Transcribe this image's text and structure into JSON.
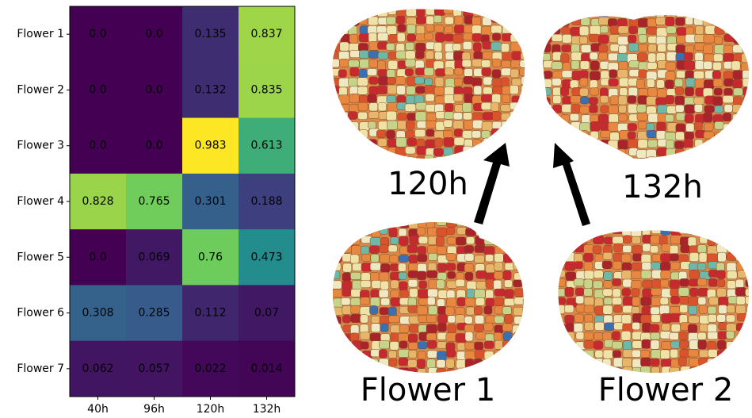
{
  "chart_data": {
    "type": "heatmap",
    "colormap": "viridis",
    "rows": [
      "Flower 1",
      "Flower 2",
      "Flower 3",
      "Flower 4",
      "Flower 5",
      "Flower 6",
      "Flower 7"
    ],
    "columns": [
      "40h",
      "96h",
      "120h",
      "132h"
    ],
    "values": [
      [
        0,
        0,
        0.135,
        0.837
      ],
      [
        0,
        0,
        0.132,
        0.835
      ],
      [
        0,
        0,
        0.983,
        0.613
      ],
      [
        0.828,
        0.765,
        0.301,
        0.188
      ],
      [
        0,
        0.069,
        0.76,
        0.473
      ],
      [
        0.308,
        0.285,
        0.112,
        0.07
      ],
      [
        0.062,
        0.057,
        0.022,
        0.014
      ]
    ],
    "value_labels": [
      [
        "0.0",
        "0.0",
        "0.135",
        "0.837"
      ],
      [
        "0.0",
        "0.0",
        "0.132",
        "0.835"
      ],
      [
        "0.0",
        "0.0",
        "0.983",
        "0.613"
      ],
      [
        "0.828",
        "0.765",
        "0.301",
        "0.188"
      ],
      [
        "0.0",
        "0.069",
        "0.76",
        "0.473"
      ],
      [
        "0.308",
        "0.285",
        "0.112",
        "0.07"
      ],
      [
        "0.062",
        "0.057",
        "0.022",
        "0.014"
      ]
    ],
    "annotations": [
      "120h",
      "132h",
      "Flower 1",
      "Flower 2"
    ]
  }
}
